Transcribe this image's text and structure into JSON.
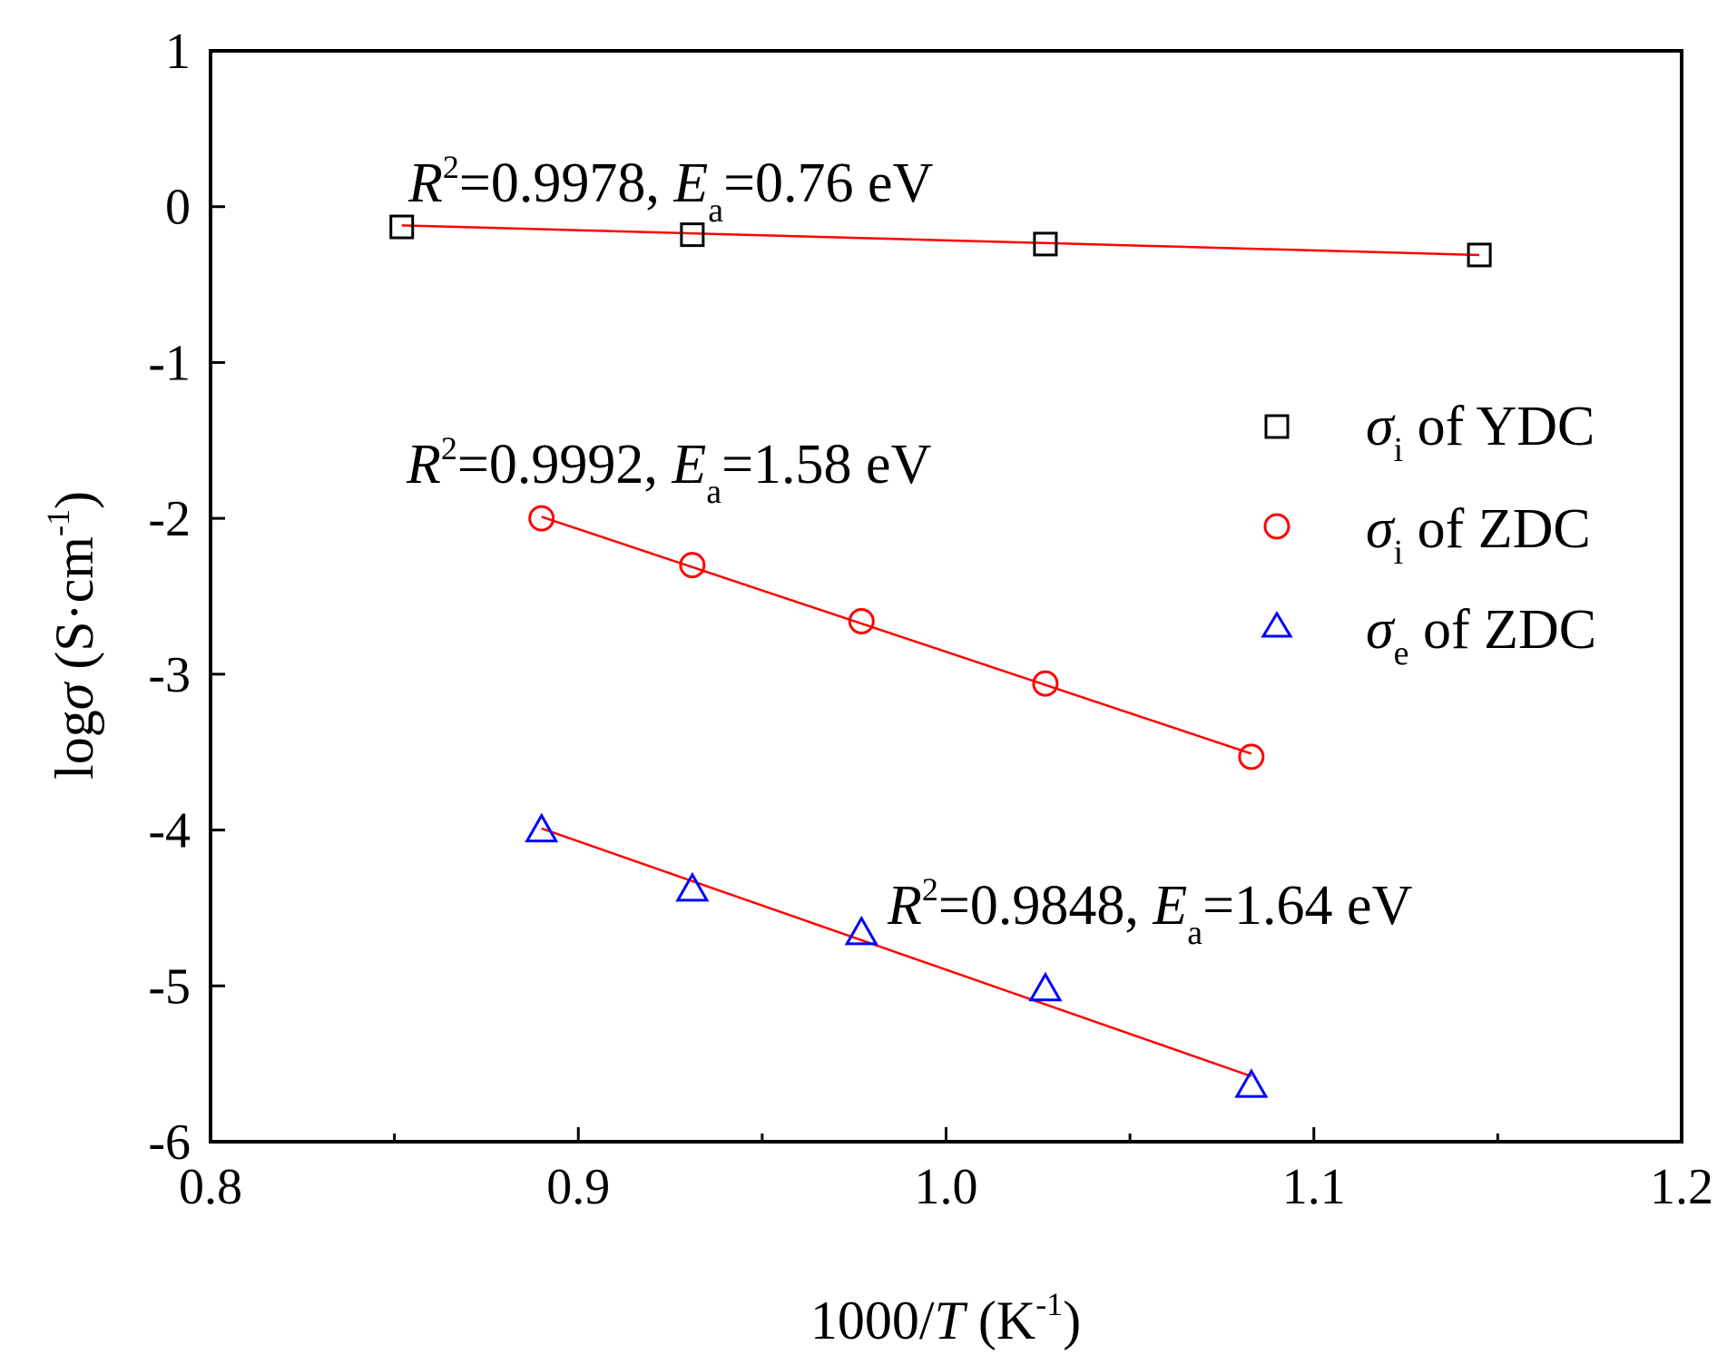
{
  "chart_data": {
    "type": "scatter",
    "title": "",
    "xlabel": {
      "prefix": "1000/",
      "var": "T",
      "unit_open": " (K",
      "unit_exp": "-1",
      "unit_close": ")"
    },
    "ylabel": {
      "prefix": "log",
      "var": "σ",
      "unit_open": " (S·cm",
      "unit_exp": "-1",
      "unit_close": ")"
    },
    "xlim": [
      0.8,
      1.2
    ],
    "ylim": [
      -6,
      1
    ],
    "xticks": [
      "0.8",
      "0.9",
      "1.0",
      "1.1",
      "1.2"
    ],
    "yticks": [
      "1",
      "0",
      "-1",
      "-2",
      "-3",
      "-4",
      "-5",
      "-6"
    ],
    "series": [
      {
        "name": "σi of YDC",
        "sym": "σ",
        "sub": "i",
        "rest": " of YDC",
        "marker": "square",
        "color": "#000000",
        "x": [
          0.852,
          0.931,
          1.027,
          1.145
        ],
        "y": [
          -0.13,
          -0.18,
          -0.24,
          -0.31
        ],
        "fit": {
          "x": [
            0.852,
            1.145
          ],
          "y": [
            -0.12,
            -0.31
          ]
        }
      },
      {
        "name": "σi of ZDC",
        "sym": "σ",
        "sub": "i",
        "rest": " of ZDC",
        "marker": "circle",
        "color": "#ff0000",
        "x": [
          0.89,
          0.931,
          0.977,
          1.027,
          1.083
        ],
        "y": [
          -2.0,
          -2.3,
          -2.66,
          -3.06,
          -3.53
        ],
        "fit": {
          "x": [
            0.89,
            1.083
          ],
          "y": [
            -1.99,
            -3.51
          ]
        }
      },
      {
        "name": "σe of ZDC",
        "sym": "σ",
        "sub": "e",
        "rest": " of ZDC",
        "marker": "triangle",
        "color": "#0000ff",
        "x": [
          0.89,
          0.931,
          0.977,
          1.027,
          1.083
        ],
        "y": [
          -4.0,
          -4.38,
          -4.66,
          -5.02,
          -5.64
        ],
        "fit": {
          "x": [
            0.89,
            1.083
          ],
          "y": [
            -3.99,
            -5.58
          ]
        }
      }
    ],
    "annotations": [
      {
        "R": "R",
        "sq": "2",
        "mid": "=0.9978, ",
        "E": "E",
        "a": "a",
        "end": "=0.76 eV"
      },
      {
        "R": "R",
        "sq": "2",
        "mid": "=0.9992, ",
        "E": "E",
        "a": "a",
        "end": "=1.58 eV"
      },
      {
        "R": "R",
        "sq": "2",
        "mid": "=0.9848, ",
        "E": "E",
        "a": "a",
        "end": "=1.64 eV"
      }
    ],
    "fit_line_color": "#ff0000",
    "legend_position": "center-right"
  }
}
